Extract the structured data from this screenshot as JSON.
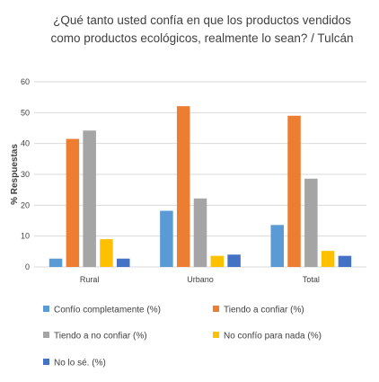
{
  "chart_data": {
    "type": "bar",
    "title_lines": [
      "¿Qué tanto usted confía en que los productos vendidos",
      "como productos ecológicos, realmente lo sean? / Tulcán"
    ],
    "ylabel": "% Respuestas",
    "xlabel": "",
    "ylim": [
      0,
      60
    ],
    "yticks": [
      "0",
      "10",
      "20",
      "30",
      "40",
      "50",
      "60"
    ],
    "grid": true,
    "legend_position": "bottom",
    "categories": [
      "Rural",
      "Urbano",
      "Total"
    ],
    "series": [
      {
        "name": "Confío completamente (%)",
        "color": "#5b9bd5",
        "values": [
          2.7,
          18.2,
          13.6
        ]
      },
      {
        "name": "Tiendo a confiar (%)",
        "color": "#ed7d31",
        "values": [
          41.5,
          52.1,
          49.0
        ]
      },
      {
        "name": "Tiendo a no confiar (%)",
        "color": "#a5a5a5",
        "values": [
          44.2,
          22.2,
          28.6
        ]
      },
      {
        "name": "No confío para nada (%)",
        "color": "#ffc000",
        "values": [
          9.0,
          3.6,
          5.2
        ]
      },
      {
        "name": "No lo sé. (%)",
        "color": "#4472c4",
        "values": [
          2.7,
          4.0,
          3.6
        ]
      }
    ]
  }
}
